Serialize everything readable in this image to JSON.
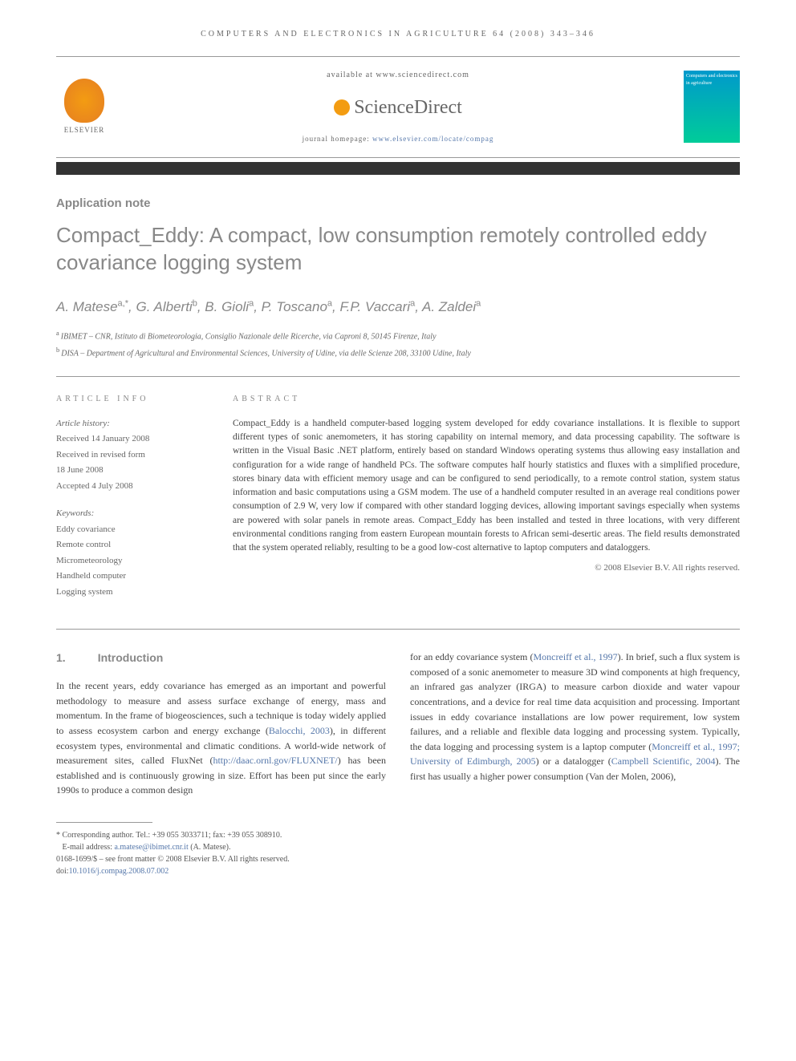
{
  "journal_header": "COMPUTERS AND ELECTRONICS IN AGRICULTURE 64 (2008) 343–346",
  "header": {
    "elsevier": "ELSEVIER",
    "available": "available at www.sciencedirect.com",
    "sciencedirect": "ScienceDirect",
    "homepage_label": "journal homepage: ",
    "homepage_url": "www.elsevier.com/locate/compag",
    "cover_title": "Computers and electronics in agriculture"
  },
  "article_type": "Application note",
  "title": "Compact_Eddy: A compact, low consumption remotely controlled eddy covariance logging system",
  "authors_html": "A. Matese|a,*|, G. Alberti|b|, B. Gioli|a|, P. Toscano|a|, F.P. Vaccari|a|, A. Zaldei|a|",
  "authors": [
    {
      "name": "A. Matese",
      "sup": "a,*"
    },
    {
      "name": "G. Alberti",
      "sup": "b"
    },
    {
      "name": "B. Gioli",
      "sup": "a"
    },
    {
      "name": "P. Toscano",
      "sup": "a"
    },
    {
      "name": "F.P. Vaccari",
      "sup": "a"
    },
    {
      "name": "A. Zaldei",
      "sup": "a"
    }
  ],
  "affiliations": [
    {
      "sup": "a",
      "text": "IBIMET – CNR, Istituto di Biometeorologia, Consiglio Nazionale delle Ricerche, via Caproni 8, 50145 Firenze, Italy"
    },
    {
      "sup": "b",
      "text": "DISA – Department of Agricultural and Environmental Sciences, University of Udine, via delle Scienze 208, 33100 Udine, Italy"
    }
  ],
  "article_info": {
    "heading": "ARTICLE INFO",
    "history_label": "Article history:",
    "history": [
      "Received 14 January 2008",
      "Received in revised form",
      "18 June 2008",
      "Accepted 4 July 2008"
    ],
    "keywords_label": "Keywords:",
    "keywords": [
      "Eddy covariance",
      "Remote control",
      "Micrometeorology",
      "Handheld computer",
      "Logging system"
    ]
  },
  "abstract": {
    "heading": "ABSTRACT",
    "text": "Compact_Eddy is a handheld computer-based logging system developed for eddy covariance installations. It is flexible to support different types of sonic anemometers, it has storing capability on internal memory, and data processing capability. The software is written in the Visual Basic .NET platform, entirely based on standard Windows operating systems thus allowing easy installation and configuration for a wide range of handheld PCs. The software computes half hourly statistics and fluxes with a simplified procedure, stores binary data with efficient memory usage and can be configured to send periodically, to a remote control station, system status information and basic computations using a GSM modem. The use of a handheld computer resulted in an average real conditions power consumption of 2.9 W, very low if compared with other standard logging devices, allowing important savings especially when systems are powered with solar panels in remote areas. Compact_Eddy has been installed and tested in three locations, with very different environmental conditions ranging from eastern European mountain forests to African semi-desertic areas. The field results demonstrated that the system operated reliably, resulting to be a good low-cost alternative to laptop computers and dataloggers.",
    "copyright": "© 2008 Elsevier B.V. All rights reserved."
  },
  "body": {
    "section_num": "1.",
    "section_title": "Introduction",
    "col1_pre": "In the recent years, eddy covariance has emerged as an important and powerful methodology to measure and assess surface exchange of energy, mass and momentum. In the frame of biogeosciences, such a technique is today widely applied to assess ecosystem carbon and energy exchange (",
    "cite1": "Balocchi, 2003",
    "col1_mid1": "), in different ecosystem types, environmental and climatic conditions. A world-wide network of measurement sites, called FluxNet (",
    "url1": "http://daac.ornl.gov/FLUXNET/",
    "col1_post": ") has been established and is continuously growing in size. Effort has been put since the early 1990s to produce a common design",
    "col2_pre": "for an eddy covariance system (",
    "cite2": "Moncreiff et al., 1997",
    "col2_mid1": "). In brief, such a flux system is composed of a sonic anemometer to measure 3D wind components at high frequency, an infrared gas analyzer (IRGA) to measure carbon dioxide and water vapour concentrations, and a device for real time data acquisition and processing. Important issues in eddy covariance installations are low power requirement, low system failures, and a reliable and flexible data logging and processing system. Typically, the data logging and processing system is a laptop computer (",
    "cite3": "Moncreiff et al., 1997; University of Edimburgh, 2005",
    "col2_mid2": ") or a datalogger (",
    "cite4": "Campbell Scientific, 2004",
    "col2_post": "). The first has usually a higher power consumption (Van der Molen, 2006),"
  },
  "footer": {
    "corresponding": "* Corresponding author. Tel.: +39 055 3033711; fax: +39 055 308910.",
    "email_label": "E-mail address: ",
    "email": "a.matese@ibimet.cnr.it",
    "email_suffix": " (A. Matese).",
    "issn": "0168-1699/$ – see front matter © 2008 Elsevier B.V. All rights reserved.",
    "doi_label": "doi:",
    "doi": "10.1016/j.compag.2008.07.002"
  },
  "colors": {
    "gray_text": "#888888",
    "link": "#5577aa",
    "body": "#444444",
    "orange": "#f39c12"
  }
}
